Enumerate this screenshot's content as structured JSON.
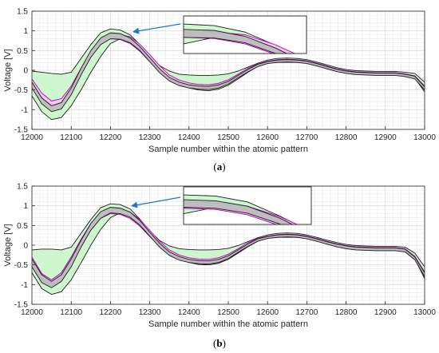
{
  "colors": {
    "green_fill": "#ccf7cc",
    "magenta_fill": "#f7c6f4",
    "gray_fill": "#bdbdbd",
    "black_line": "#1a1a1a",
    "green_line": "#2e7d32",
    "magenta_line": "#b000b0",
    "arrow": "#1f77c8",
    "grid": "#e6e6e6"
  },
  "chart_data": [
    {
      "type": "area",
      "caption_open": "(",
      "caption_letter": "a",
      "caption_close": ")",
      "xlabel": "Sample number within the atomic pattern",
      "ylabel": "Voltage [V]",
      "xlim": [
        12000,
        13000
      ],
      "ylim": [
        -1.5,
        1.5
      ],
      "xticks": [
        12000,
        12100,
        12200,
        12300,
        12400,
        12500,
        12600,
        12700,
        12800,
        12900,
        13000
      ],
      "yticks": [
        1.5,
        1,
        0.5,
        0,
        -0.5,
        -1,
        -1.5
      ],
      "grid": true,
      "inset_xlim": [
        12200,
        12300
      ],
      "inset_ylim": [
        0.5,
        1.2
      ],
      "x": [
        12000,
        12025,
        12050,
        12075,
        12100,
        12125,
        12150,
        12175,
        12200,
        12225,
        12250,
        12275,
        12300,
        12325,
        12350,
        12375,
        12400,
        12425,
        12450,
        12475,
        12500,
        12525,
        12550,
        12575,
        12600,
        12625,
        12650,
        12675,
        12700,
        12725,
        12750,
        12775,
        12800,
        12825,
        12850,
        12875,
        12900,
        12925,
        12950,
        12975,
        13000
      ],
      "series": [
        {
          "role": "green_band_upper",
          "values": [
            -0.02,
            -0.05,
            -0.08,
            -0.1,
            -0.05,
            0.3,
            0.65,
            0.95,
            1.05,
            1.02,
            0.9,
            0.65,
            0.35,
            0.12,
            -0.02,
            -0.1,
            -0.12,
            -0.13,
            -0.13,
            -0.12,
            -0.09,
            -0.02,
            0.08,
            0.18,
            0.26,
            0.3,
            0.31,
            0.3,
            0.27,
            0.21,
            0.14,
            0.07,
            0.02,
            -0.01,
            -0.02,
            -0.03,
            -0.03,
            -0.03,
            -0.05,
            -0.08,
            -0.3
          ]
        },
        {
          "role": "green_band_lower",
          "values": [
            -0.65,
            -1.05,
            -1.25,
            -1.2,
            -0.9,
            -0.5,
            -0.05,
            0.35,
            0.68,
            0.8,
            0.78,
            0.62,
            0.35,
            0.05,
            -0.2,
            -0.36,
            -0.45,
            -0.5,
            -0.52,
            -0.48,
            -0.38,
            -0.22,
            -0.05,
            0.1,
            0.18,
            0.2,
            0.2,
            0.2,
            0.19,
            0.13,
            0.06,
            -0.01,
            -0.06,
            -0.09,
            -0.1,
            -0.11,
            -0.11,
            -0.11,
            -0.14,
            -0.2,
            -0.55
          ]
        },
        {
          "role": "magenta_band_upper",
          "values": [
            -0.22,
            -0.58,
            -0.78,
            -0.72,
            -0.4,
            0.05,
            0.48,
            0.78,
            0.9,
            0.9,
            0.85,
            0.66,
            0.4,
            0.12,
            -0.12,
            -0.25,
            -0.32,
            -0.36,
            -0.37,
            -0.33,
            -0.24,
            -0.1,
            0.05,
            0.16,
            0.23,
            0.27,
            0.28,
            0.27,
            0.24,
            0.18,
            0.11,
            0.04,
            -0.01,
            -0.04,
            -0.05,
            -0.06,
            -0.06,
            -0.06,
            -0.09,
            -0.14,
            -0.4
          ]
        },
        {
          "role": "magenta_band_lower",
          "values": [
            -0.32,
            -0.72,
            -0.92,
            -0.85,
            -0.52,
            -0.08,
            0.35,
            0.66,
            0.8,
            0.78,
            0.68,
            0.48,
            0.22,
            -0.02,
            -0.22,
            -0.34,
            -0.41,
            -0.44,
            -0.45,
            -0.41,
            -0.31,
            -0.16,
            -0.01,
            0.12,
            0.2,
            0.23,
            0.24,
            0.23,
            0.2,
            0.14,
            0.07,
            0.0,
            -0.04,
            -0.07,
            -0.08,
            -0.09,
            -0.09,
            -0.09,
            -0.12,
            -0.18,
            -0.47
          ]
        },
        {
          "role": "gray_band_upper",
          "values": [
            -0.3,
            -0.7,
            -0.9,
            -0.82,
            -0.45,
            0.05,
            0.5,
            0.82,
            0.95,
            0.93,
            0.82,
            0.6,
            0.32,
            0.04,
            -0.18,
            -0.3,
            -0.37,
            -0.4,
            -0.41,
            -0.37,
            -0.28,
            -0.13,
            0.02,
            0.15,
            0.22,
            0.26,
            0.27,
            0.26,
            0.23,
            0.17,
            0.1,
            0.03,
            -0.02,
            -0.05,
            -0.06,
            -0.07,
            -0.07,
            -0.07,
            -0.1,
            -0.15,
            -0.42
          ]
        },
        {
          "role": "gray_band_lower",
          "values": [
            -0.45,
            -0.85,
            -1.05,
            -0.98,
            -0.62,
            -0.12,
            0.33,
            0.65,
            0.8,
            0.79,
            0.7,
            0.5,
            0.22,
            -0.06,
            -0.27,
            -0.39,
            -0.45,
            -0.48,
            -0.49,
            -0.45,
            -0.35,
            -0.19,
            -0.04,
            0.09,
            0.17,
            0.2,
            0.21,
            0.2,
            0.17,
            0.11,
            0.04,
            -0.03,
            -0.08,
            -0.11,
            -0.12,
            -0.13,
            -0.13,
            -0.13,
            -0.16,
            -0.22,
            -0.5
          ]
        }
      ]
    },
    {
      "type": "area",
      "caption_open": "(",
      "caption_letter": "b",
      "caption_close": ")",
      "xlabel": "Sample number within the atomic pattern",
      "ylabel": "Voltage [V]",
      "xlim": [
        12000,
        13000
      ],
      "ylim": [
        -1.5,
        1.5
      ],
      "xticks": [
        12000,
        12100,
        12200,
        12300,
        12400,
        12500,
        12600,
        12700,
        12800,
        12900,
        13000
      ],
      "yticks": [
        1.5,
        1,
        0.5,
        0,
        -0.5,
        -1,
        -1.5
      ],
      "grid": true,
      "inset_xlim": [
        12200,
        12300
      ],
      "inset_ylim": [
        0.5,
        1.2
      ],
      "x": [
        12000,
        12025,
        12050,
        12075,
        12100,
        12125,
        12150,
        12175,
        12200,
        12225,
        12250,
        12275,
        12300,
        12325,
        12350,
        12375,
        12400,
        12425,
        12450,
        12475,
        12500,
        12525,
        12550,
        12575,
        12600,
        12625,
        12650,
        12675,
        12700,
        12725,
        12750,
        12775,
        12800,
        12825,
        12850,
        12875,
        12900,
        12925,
        12950,
        12975,
        13000
      ],
      "series": [
        {
          "role": "green_band_upper",
          "values": [
            -0.12,
            -0.1,
            -0.1,
            -0.12,
            -0.05,
            0.3,
            0.65,
            0.95,
            1.05,
            1.03,
            0.92,
            0.66,
            0.36,
            0.12,
            -0.02,
            -0.09,
            -0.11,
            -0.12,
            -0.12,
            -0.11,
            -0.08,
            -0.01,
            0.09,
            0.19,
            0.26,
            0.3,
            0.31,
            0.3,
            0.26,
            0.2,
            0.13,
            0.07,
            0.02,
            -0.01,
            -0.02,
            -0.03,
            -0.03,
            -0.03,
            -0.05,
            -0.2,
            -0.55
          ]
        },
        {
          "role": "green_band_lower",
          "values": [
            -0.7,
            -1.1,
            -1.25,
            -1.18,
            -0.88,
            -0.45,
            0.0,
            0.4,
            0.7,
            0.82,
            0.8,
            0.64,
            0.37,
            0.07,
            -0.18,
            -0.35,
            -0.44,
            -0.49,
            -0.5,
            -0.46,
            -0.36,
            -0.2,
            -0.04,
            0.1,
            0.18,
            0.2,
            0.2,
            0.2,
            0.18,
            0.12,
            0.05,
            -0.02,
            -0.07,
            -0.1,
            -0.11,
            -0.12,
            -0.12,
            -0.12,
            -0.15,
            -0.35,
            -0.85
          ]
        },
        {
          "role": "magenta_band_upper",
          "values": [
            -0.3,
            -0.72,
            -0.88,
            -0.7,
            -0.3,
            0.15,
            0.55,
            0.82,
            0.92,
            0.9,
            0.84,
            0.65,
            0.38,
            0.1,
            -0.12,
            -0.25,
            -0.32,
            -0.35,
            -0.36,
            -0.32,
            -0.23,
            -0.09,
            0.06,
            0.17,
            0.23,
            0.27,
            0.28,
            0.27,
            0.23,
            0.17,
            0.1,
            0.04,
            -0.01,
            -0.04,
            -0.05,
            -0.06,
            -0.06,
            -0.06,
            -0.09,
            -0.28,
            -0.68
          ]
        },
        {
          "role": "magenta_band_lower",
          "values": [
            -0.42,
            -0.88,
            -1.02,
            -0.83,
            -0.42,
            0.0,
            0.4,
            0.68,
            0.8,
            0.78,
            0.68,
            0.48,
            0.22,
            -0.02,
            -0.22,
            -0.34,
            -0.41,
            -0.44,
            -0.45,
            -0.41,
            -0.31,
            -0.16,
            -0.01,
            0.12,
            0.19,
            0.22,
            0.23,
            0.22,
            0.19,
            0.13,
            0.06,
            0.0,
            -0.04,
            -0.07,
            -0.08,
            -0.09,
            -0.09,
            -0.09,
            -0.12,
            -0.32,
            -0.75
          ]
        },
        {
          "role": "gray_band_upper",
          "values": [
            -0.35,
            -0.75,
            -0.92,
            -0.75,
            -0.35,
            0.12,
            0.55,
            0.85,
            0.96,
            0.94,
            0.84,
            0.62,
            0.33,
            0.05,
            -0.17,
            -0.29,
            -0.36,
            -0.39,
            -0.4,
            -0.36,
            -0.27,
            -0.12,
            0.03,
            0.16,
            0.22,
            0.26,
            0.27,
            0.26,
            0.22,
            0.16,
            0.09,
            0.03,
            -0.02,
            -0.05,
            -0.06,
            -0.07,
            -0.07,
            -0.07,
            -0.1,
            -0.3,
            -0.7
          ]
        },
        {
          "role": "gray_band_lower",
          "values": [
            -0.55,
            -0.95,
            -1.08,
            -0.92,
            -0.55,
            -0.05,
            0.38,
            0.68,
            0.82,
            0.8,
            0.71,
            0.51,
            0.23,
            -0.05,
            -0.26,
            -0.38,
            -0.44,
            -0.47,
            -0.48,
            -0.44,
            -0.34,
            -0.18,
            -0.03,
            0.1,
            0.17,
            0.2,
            0.21,
            0.2,
            0.16,
            0.1,
            0.03,
            -0.04,
            -0.09,
            -0.12,
            -0.13,
            -0.14,
            -0.14,
            -0.14,
            -0.17,
            -0.37,
            -0.8
          ]
        }
      ]
    }
  ]
}
